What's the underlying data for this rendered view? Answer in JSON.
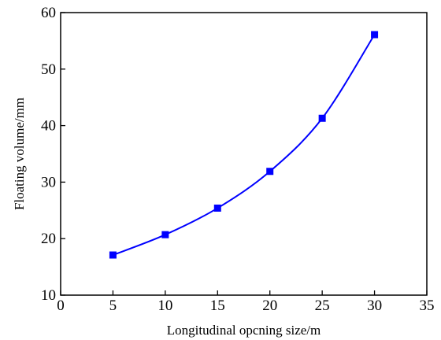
{
  "chart_data": {
    "type": "line",
    "title": "",
    "xlabel": "Longitudinal opcning size/m",
    "ylabel": "Floating volume/mm",
    "xlim": [
      0,
      35
    ],
    "ylim": [
      10,
      60
    ],
    "x_ticks": [
      0,
      5,
      10,
      15,
      20,
      25,
      30,
      35
    ],
    "y_ticks": [
      10,
      20,
      30,
      40,
      50,
      60
    ],
    "grid": false,
    "legend": "none",
    "series": [
      {
        "x": [
          5,
          10,
          15,
          20,
          25,
          30
        ],
        "values": [
          17.1,
          20.7,
          25.4,
          31.9,
          41.3,
          56.1
        ],
        "color": "#0000ff",
        "marker": "square",
        "smooth": true
      }
    ]
  }
}
